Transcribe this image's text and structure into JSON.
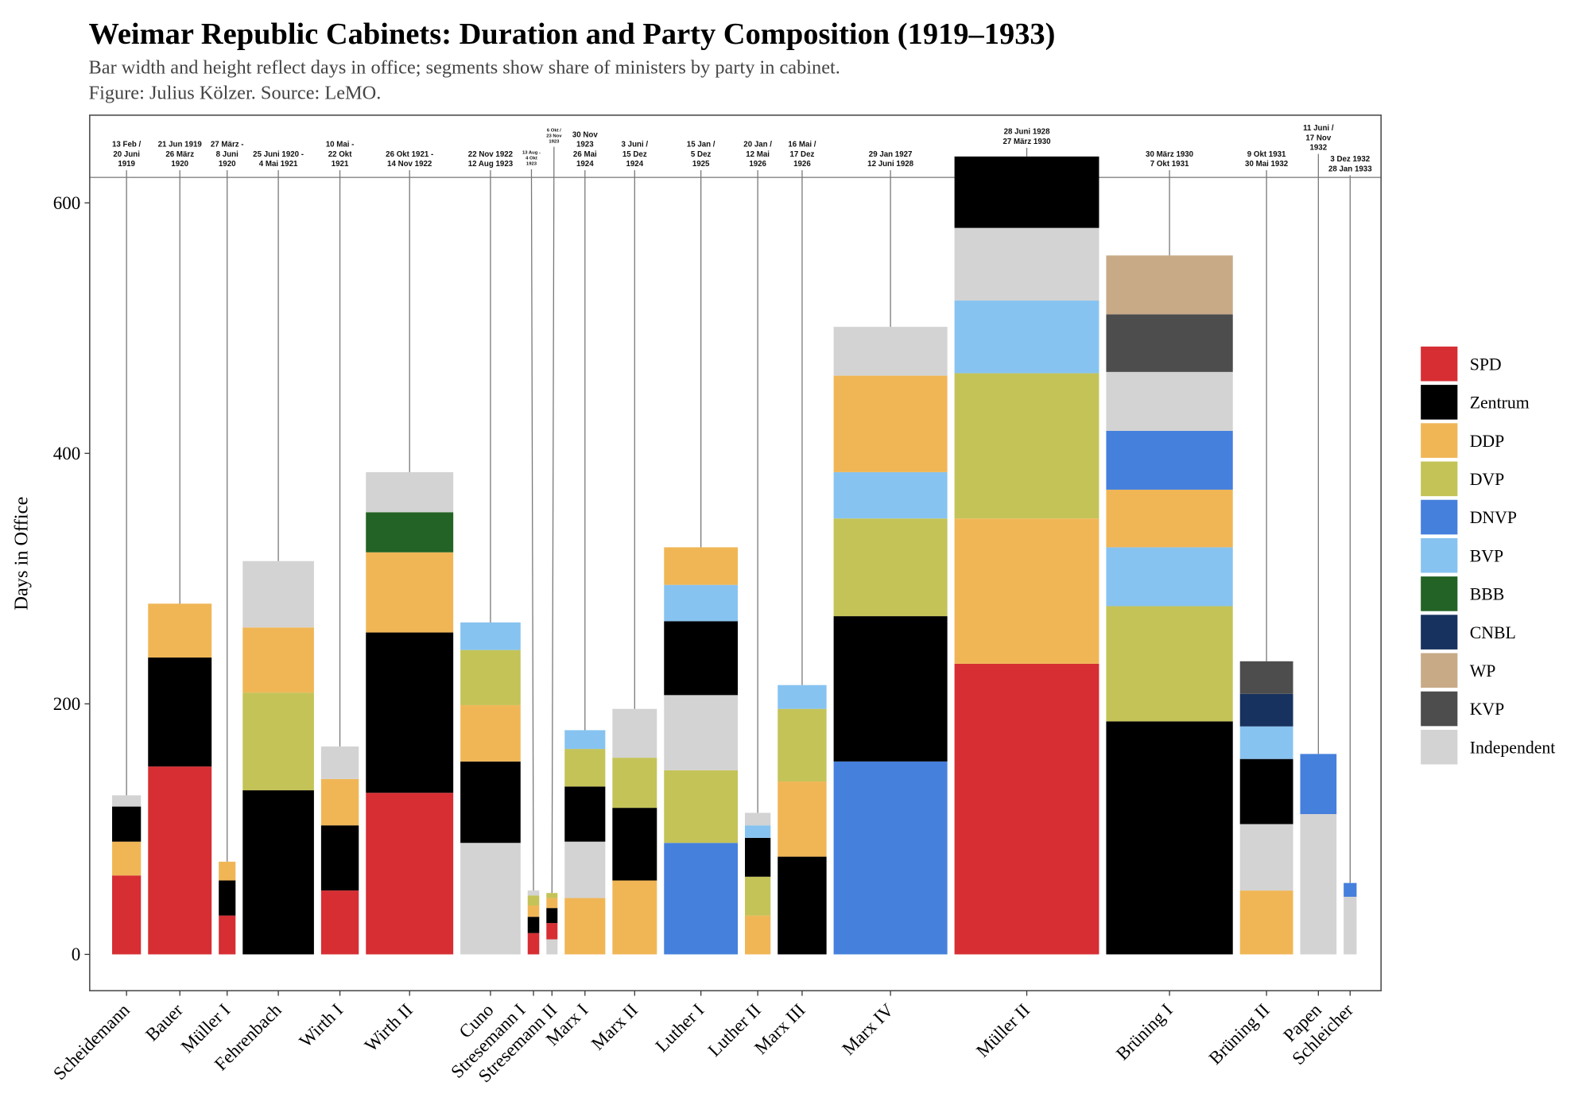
{
  "chart_data": {
    "type": "bar",
    "title": "Weimar Republic Cabinets: Duration and Party Composition (1919–1933)",
    "subtitle": "Bar width and height reflect days in office; segments show share of ministers by party in cabinet.",
    "caption": "Figure: Julius Kölzer. Source: LeMO.",
    "xlabel": "",
    "ylabel": "Days in Office",
    "ylim": [
      -29,
      670
    ],
    "yticks": [
      0,
      200,
      400,
      600
    ],
    "grid": false,
    "legend_placement": "right",
    "parties": [
      {
        "name": "SPD",
        "color": "#d62e33"
      },
      {
        "name": "Zentrum",
        "color": "#000000"
      },
      {
        "name": "DDP",
        "color": "#f0b656"
      },
      {
        "name": "DVP",
        "color": "#c4c358"
      },
      {
        "name": "DNVP",
        "color": "#4580dc"
      },
      {
        "name": "BVP",
        "color": "#87c3f0"
      },
      {
        "name": "BBB",
        "color": "#236325"
      },
      {
        "name": "CNBL",
        "color": "#17325e"
      },
      {
        "name": "WP",
        "color": "#c8aa87"
      },
      {
        "name": "KVP",
        "color": "#4d4d4d"
      },
      {
        "name": "Independent",
        "color": "#d3d3d3"
      }
    ],
    "cabinets": [
      {
        "name": "Scheidemann",
        "dates": [
          "13 Feb /",
          "20 Juni",
          "1919"
        ],
        "days": 127,
        "segments": [
          [
            "SPD",
            63
          ],
          [
            "DDP",
            27
          ],
          [
            "Zentrum",
            28
          ],
          [
            "Independent",
            9
          ]
        ]
      },
      {
        "name": "Bauer",
        "dates": [
          "21 Jun 1919",
          "26 März",
          "1920"
        ],
        "days": 280,
        "segments": [
          [
            "SPD",
            150
          ],
          [
            "Zentrum",
            87
          ],
          [
            "DDP",
            43
          ]
        ]
      },
      {
        "name": "Müller I",
        "dates": [
          "27 März -",
          "8 Juni",
          "1920"
        ],
        "days": 74,
        "segments": [
          [
            "SPD",
            31
          ],
          [
            "Zentrum",
            28
          ],
          [
            "DDP",
            15
          ]
        ]
      },
      {
        "name": "Fehrenbach",
        "dates": [
          "25 Juni 1920 -",
          "4 Mai 1921"
        ],
        "days": 314,
        "segments": [
          [
            "Zentrum",
            131
          ],
          [
            "DVP",
            78
          ],
          [
            "DDP",
            52
          ],
          [
            "Independent",
            53
          ]
        ]
      },
      {
        "name": "Wirth I",
        "dates": [
          "10 Mai -",
          "22 Okt",
          "1921"
        ],
        "days": 166,
        "segments": [
          [
            "SPD",
            51
          ],
          [
            "Zentrum",
            52
          ],
          [
            "DDP",
            37
          ],
          [
            "Independent",
            26
          ]
        ]
      },
      {
        "name": "Wirth II",
        "dates": [
          "26 Okt 1921 -",
          "14 Nov 1922"
        ],
        "days": 385,
        "segments": [
          [
            "SPD",
            129
          ],
          [
            "Zentrum",
            128
          ],
          [
            "DDP",
            64
          ],
          [
            "BBB",
            32
          ],
          [
            "Independent",
            32
          ]
        ]
      },
      {
        "name": "Cuno",
        "dates": [
          "22 Nov 1922",
          "12 Aug 1923"
        ],
        "days": 265,
        "segments": [
          [
            "Independent",
            89
          ],
          [
            "Zentrum",
            65
          ],
          [
            "DDP",
            45
          ],
          [
            "DVP",
            44
          ],
          [
            "BVP",
            22
          ]
        ]
      },
      {
        "name": "Stresemann I",
        "dates": [
          "13 Aug -",
          "4 Okt",
          "1923"
        ],
        "days": 51,
        "segments": [
          [
            "SPD",
            17
          ],
          [
            "Zentrum",
            13
          ],
          [
            "DDP",
            9
          ],
          [
            "DVP",
            8
          ],
          [
            "Independent",
            4
          ]
        ]
      },
      {
        "name": "Stresemann II",
        "dates": [
          "6 Okt /",
          "23 Nov",
          "1923"
        ],
        "days": 49,
        "segments": [
          [
            "Independent",
            12
          ],
          [
            "SPD",
            13
          ],
          [
            "Zentrum",
            12
          ],
          [
            "DDP",
            8
          ],
          [
            "DVP",
            4
          ]
        ]
      },
      {
        "name": "Marx I",
        "dates": [
          "30 Nov",
          "1923",
          "26 Mai",
          "1924"
        ],
        "days": 179,
        "segments": [
          [
            "DDP",
            45
          ],
          [
            "Independent",
            45
          ],
          [
            "Zentrum",
            44
          ],
          [
            "DVP",
            30
          ],
          [
            "BVP",
            15
          ]
        ]
      },
      {
        "name": "Marx II",
        "dates": [
          "3 Juni /",
          "15 Dez",
          "1924"
        ],
        "days": 196,
        "segments": [
          [
            "DDP",
            59
          ],
          [
            "Zentrum",
            58
          ],
          [
            "DVP",
            40
          ],
          [
            "Independent",
            39
          ]
        ]
      },
      {
        "name": "Luther I",
        "dates": [
          "15 Jan /",
          "5 Dez",
          "1925"
        ],
        "days": 325,
        "segments": [
          [
            "DNVP",
            89
          ],
          [
            "DVP",
            58
          ],
          [
            "Independent",
            60
          ],
          [
            "Zentrum",
            59
          ],
          [
            "BVP",
            29
          ],
          [
            "DDP",
            30
          ]
        ]
      },
      {
        "name": "Luther II",
        "dates": [
          "20 Jan /",
          "12 Mai",
          "1926"
        ],
        "days": 113,
        "segments": [
          [
            "DDP",
            31
          ],
          [
            "DVP",
            31
          ],
          [
            "Zentrum",
            31
          ],
          [
            "BVP",
            10
          ],
          [
            "Independent",
            10
          ]
        ]
      },
      {
        "name": "Marx III",
        "dates": [
          "16 Mai /",
          "17 Dez",
          "1926"
        ],
        "days": 215,
        "segments": [
          [
            "Zentrum",
            78
          ],
          [
            "DDP",
            60
          ],
          [
            "DVP",
            58
          ],
          [
            "BVP",
            19
          ]
        ]
      },
      {
        "name": "Marx IV",
        "dates": [
          "29 Jan 1927",
          "12 Juni 1928"
        ],
        "days": 501,
        "segments": [
          [
            "DNVP",
            154
          ],
          [
            "Zentrum",
            116
          ],
          [
            "DVP",
            78
          ],
          [
            "BVP",
            37
          ],
          [
            "DDP",
            77
          ],
          [
            "Independent",
            39
          ]
        ]
      },
      {
        "name": "Müller II",
        "dates": [
          "28 Juni 1928",
          "27 März 1930"
        ],
        "days": 637,
        "segments": [
          [
            "SPD",
            232
          ],
          [
            "DDP",
            116
          ],
          [
            "DVP",
            116
          ],
          [
            "BVP",
            58
          ],
          [
            "Independent",
            58
          ],
          [
            "Zentrum",
            57
          ]
        ]
      },
      {
        "name": "Brüning I",
        "dates": [
          "30 März 1930",
          "7 Okt 1931"
        ],
        "days": 558,
        "segments": [
          [
            "Zentrum",
            186
          ],
          [
            "DVP",
            92
          ],
          [
            "BVP",
            47
          ],
          [
            "DDP",
            46
          ],
          [
            "DNVP",
            47
          ],
          [
            "Independent",
            47
          ],
          [
            "KVP",
            46
          ],
          [
            "WP",
            47
          ]
        ]
      },
      {
        "name": "Brüning II",
        "dates": [
          "9 Okt 1931",
          "30 Mai 1932"
        ],
        "days": 234,
        "segments": [
          [
            "DDP",
            51
          ],
          [
            "Independent",
            53
          ],
          [
            "Zentrum",
            52
          ],
          [
            "BVP",
            26
          ],
          [
            "CNBL",
            26
          ],
          [
            "KVP",
            26
          ]
        ]
      },
      {
        "name": "Papen",
        "dates": [
          "11 Juni /",
          "17 Nov",
          "1932"
        ],
        "days": 160,
        "segments": [
          [
            "Independent",
            112
          ],
          [
            "DNVP",
            48
          ]
        ]
      },
      {
        "name": "Schleicher",
        "dates": [
          "3 Dez 1932",
          "28 Jan 1933"
        ],
        "days": 57,
        "segments": [
          [
            "Independent",
            46
          ],
          [
            "DNVP",
            11
          ]
        ]
      }
    ]
  }
}
